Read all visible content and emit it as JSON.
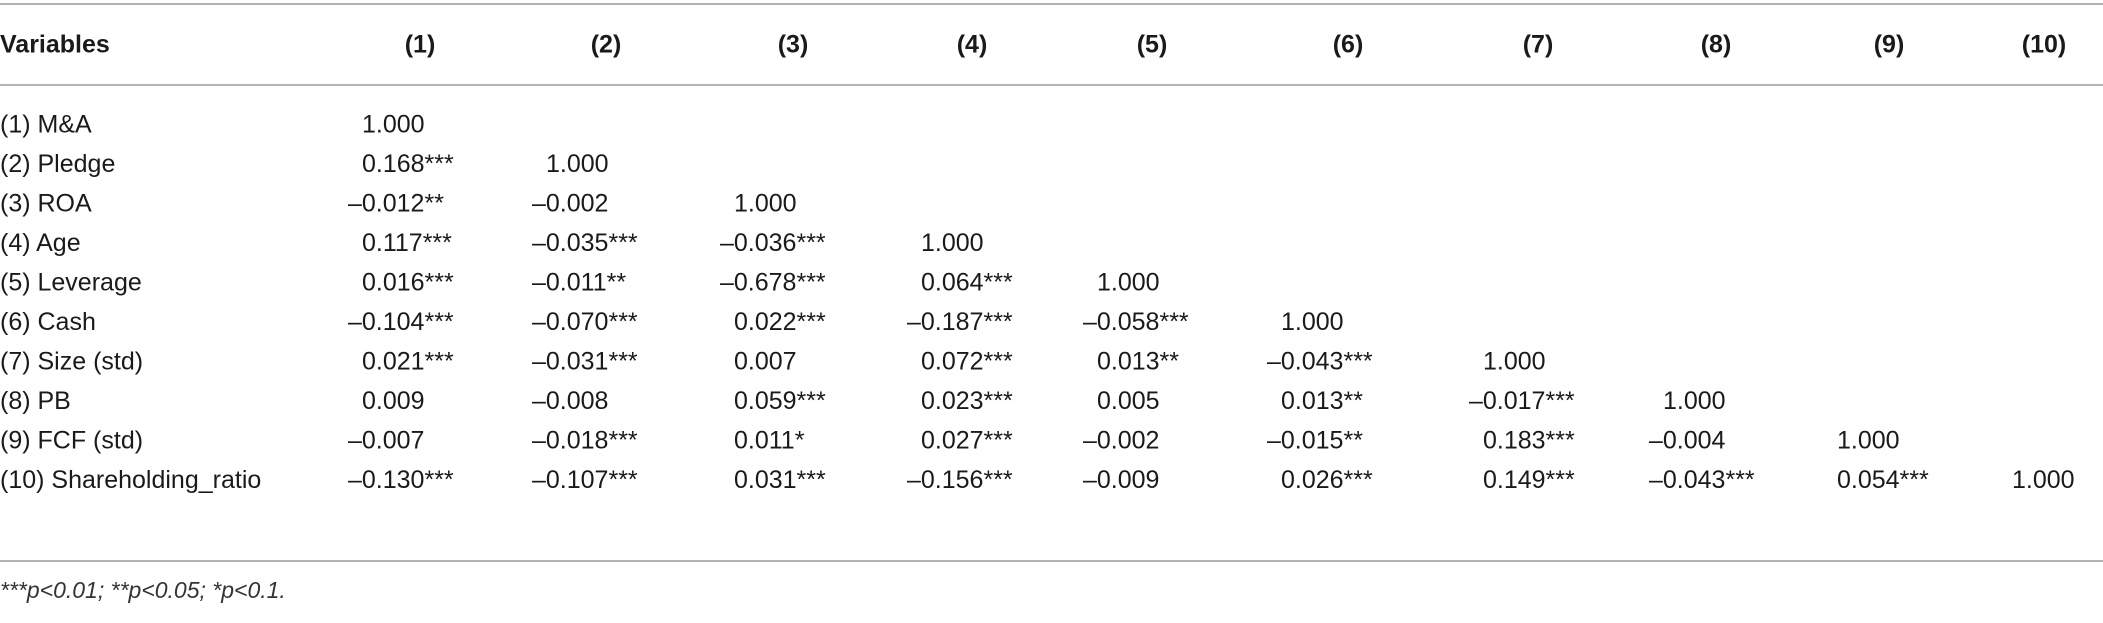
{
  "table": {
    "header": [
      "Variables",
      "(1)",
      "(2)",
      "(3)",
      "(4)",
      "(5)",
      "(6)",
      "(7)",
      "(8)",
      "(9)",
      "(10)"
    ],
    "rows": [
      {
        "label": "(1) M&A",
        "cells": [
          "1.000"
        ]
      },
      {
        "label": "(2) Pledge",
        "cells": [
          "0.168***",
          "1.000"
        ]
      },
      {
        "label": "(3) ROA",
        "cells": [
          "–0.012**",
          "–0.002",
          "1.000"
        ]
      },
      {
        "label": "(4) Age",
        "cells": [
          "0.117***",
          "–0.035***",
          "–0.036***",
          "1.000"
        ]
      },
      {
        "label": "(5) Leverage",
        "cells": [
          "0.016***",
          "–0.011**",
          "–0.678***",
          "0.064***",
          "1.000"
        ]
      },
      {
        "label": "(6) Cash",
        "cells": [
          "–0.104***",
          "–0.070***",
          "0.022***",
          "–0.187***",
          "–0.058***",
          "1.000"
        ]
      },
      {
        "label": "(7) Size (std)",
        "cells": [
          "0.021***",
          "–0.031***",
          "0.007",
          "0.072***",
          "0.013**",
          "–0.043***",
          "1.000"
        ]
      },
      {
        "label": "(8) PB",
        "cells": [
          "0.009",
          "–0.008",
          "0.059***",
          "0.023***",
          "0.005",
          "0.013**",
          "–0.017***",
          "1.000"
        ]
      },
      {
        "label": "(9) FCF (std)",
        "cells": [
          "–0.007",
          "–0.018***",
          "0.011*",
          "0.027***",
          "–0.002",
          "–0.015**",
          "0.183***",
          "–0.004",
          "1.000"
        ]
      },
      {
        "label": "(10) Shareholding_ratio",
        "cells": [
          "–0.130***",
          "–0.107***",
          "0.031***",
          "–0.156***",
          "–0.009",
          "0.026***",
          "0.149***",
          "–0.043***",
          "0.054***",
          "1.000"
        ]
      }
    ],
    "footnote": "***p<0.01; **p<0.05; *p<0.1."
  }
}
